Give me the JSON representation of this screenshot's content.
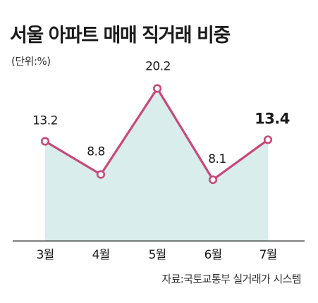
{
  "title": "서울 아파트 매매 직거래 비중",
  "unit_label": "(단위:%)",
  "source": "자료:국토교통부 실거래가 시스템",
  "chart_data": {
    "type": "area",
    "title": "서울 아파트 매매 직거래 비중",
    "unit": "%",
    "categories": [
      "3월",
      "4월",
      "5월",
      "6월",
      "7월"
    ],
    "values": [
      13.2,
      8.8,
      20.2,
      8.1,
      13.4
    ],
    "value_labels": [
      "13.2",
      "8.8",
      "20.2",
      "8.1",
      "13.4"
    ],
    "highlight_index": 4,
    "ylim": [
      0,
      22
    ],
    "grid": false,
    "colors": {
      "line": "#c8497b",
      "fill": "#d9eeec",
      "marker_fill": "#ffffff",
      "axis": "#333333"
    }
  }
}
